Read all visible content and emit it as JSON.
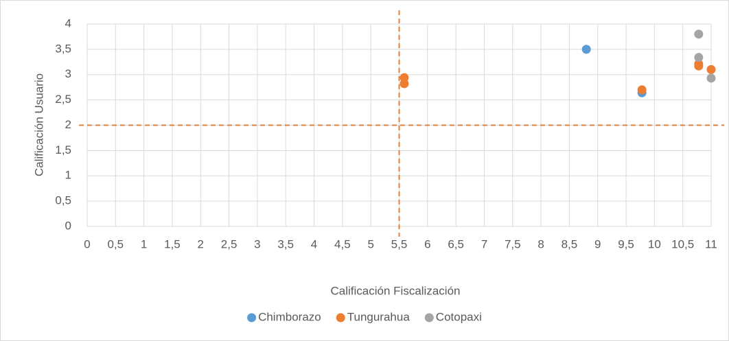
{
  "chart_data": {
    "type": "scatter",
    "xlabel": "Calificación Fiscalización",
    "ylabel": "Calificación Usuario",
    "series": [
      {
        "name": "Chimborazo",
        "color": "#5b9bd5",
        "x": [
          8.8,
          9.78
        ],
        "values": [
          3.5,
          2.64
        ]
      },
      {
        "name": "Tungurahua",
        "color": "#ed7d31",
        "x": [
          5.59,
          5.59,
          9.78,
          10.78,
          10.78,
          11
        ],
        "values": [
          2.94,
          2.82,
          2.7,
          3.17,
          3.21,
          3.1
        ]
      },
      {
        "name": "Cotopaxi",
        "color": "#a5a5a5",
        "x": [
          10.78,
          10.78,
          11
        ],
        "values": [
          3.8,
          3.34,
          2.93
        ]
      }
    ],
    "xlim": [
      0,
      11
    ],
    "ylim": [
      0,
      4
    ],
    "xticks": [
      0,
      {
        "value": 0.5,
        "label": "0,5"
      },
      1,
      {
        "value": 1.5,
        "label": "1,5"
      },
      2,
      {
        "value": 2.5,
        "label": "2,5"
      },
      3,
      {
        "value": 3.5,
        "label": "3,5"
      },
      4,
      {
        "value": 4.5,
        "label": "4,5"
      },
      5,
      {
        "value": 5.5,
        "label": "5,5"
      },
      6,
      {
        "value": 6.5,
        "label": "6,5"
      },
      7,
      {
        "value": 7.5,
        "label": "7,5"
      },
      8,
      {
        "value": 8.5,
        "label": "8,5"
      },
      9,
      {
        "value": 9.5,
        "label": "9,5"
      },
      10,
      {
        "value": 10.5,
        "label": "10,5"
      },
      11
    ],
    "yticks": [
      0,
      {
        "value": 0.5,
        "label": "0,5"
      },
      1,
      {
        "value": 1.5,
        "label": "1,5"
      },
      2,
      {
        "value": 2.5,
        "label": "2,5"
      },
      3,
      {
        "value": 3.5,
        "label": "3,5"
      },
      4
    ],
    "grid": true,
    "reference_lines": {
      "x": 5.5,
      "y": 2,
      "color": "#ed7d31"
    },
    "legend": "bottom"
  }
}
